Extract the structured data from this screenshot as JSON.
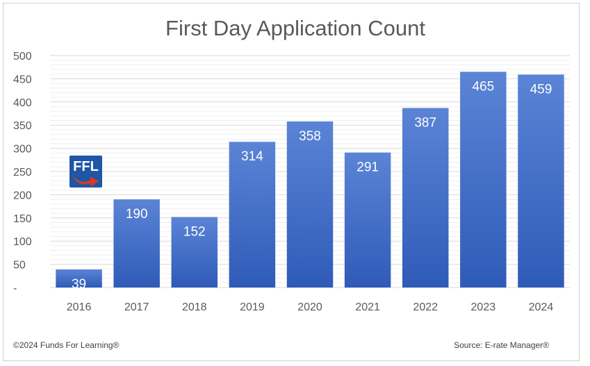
{
  "chart_data": {
    "type": "bar",
    "title": "First Day Application Count",
    "categories": [
      "2016",
      "2017",
      "2018",
      "2019",
      "2020",
      "2021",
      "2022",
      "2023",
      "2024"
    ],
    "values": [
      39,
      190,
      152,
      314,
      358,
      291,
      387,
      465,
      459
    ],
    "yticks": [
      "-",
      "50",
      "100",
      "150",
      "200",
      "250",
      "300",
      "350",
      "400",
      "450",
      "500"
    ],
    "ylim": [
      0,
      500
    ],
    "grid": true,
    "legend": "none",
    "bar_color_top": "#5b84d6",
    "bar_color_bottom": "#2f5bb8"
  },
  "logo": {
    "text": "FFL",
    "color": "#1f56a6",
    "arrow_color": "#d63a2a"
  },
  "footer": {
    "copyright": "©2024 Funds For Learning®",
    "source": "Source: E-rate Manager®"
  }
}
